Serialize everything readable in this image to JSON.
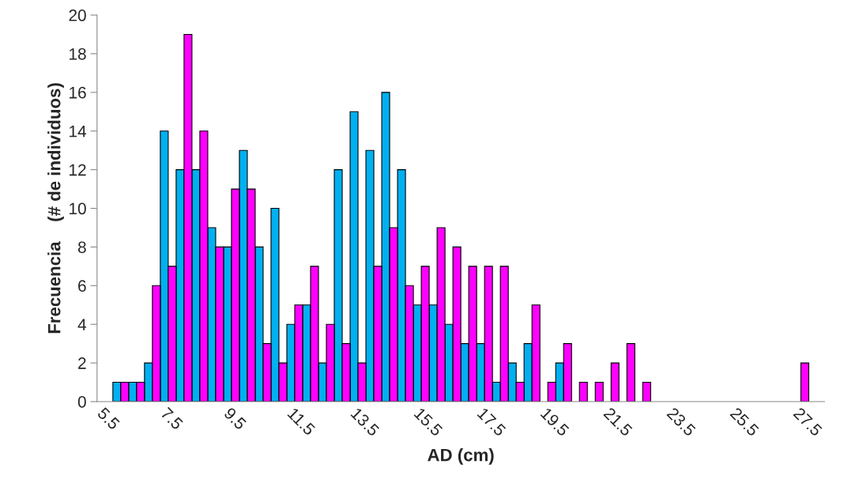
{
  "chart_data": {
    "type": "bar",
    "xlabel": "AD (cm)",
    "ylabel": "Frecuencia    (# de individuos)",
    "categories": [
      "5.5",
      null,
      null,
      null,
      "7.5",
      null,
      null,
      null,
      "9.5",
      null,
      null,
      null,
      "11.5",
      null,
      null,
      null,
      "13.5",
      null,
      null,
      null,
      "15.5",
      null,
      null,
      null,
      "17.5",
      null,
      null,
      null,
      "19.5",
      null,
      null,
      null,
      "21.5",
      null,
      null,
      null,
      "23.5",
      null,
      null,
      null,
      "25.5",
      null,
      null,
      null,
      "27.5",
      null
    ],
    "series": [
      {
        "color": "#00b0f0",
        "values": [
          null,
          1,
          1,
          2,
          14,
          12,
          12,
          9,
          8,
          13,
          8,
          10,
          4,
          5,
          2,
          12,
          15,
          13,
          16,
          12,
          5,
          5,
          4,
          3,
          3,
          1,
          2,
          3,
          null,
          2,
          null,
          null,
          null,
          null,
          null,
          null,
          null,
          null,
          null,
          null,
          null,
          null,
          null,
          null,
          null,
          null
        ]
      },
      {
        "color": "#ff00ff",
        "values": [
          null,
          1,
          1,
          6,
          7,
          19,
          14,
          8,
          11,
          11,
          3,
          2,
          5,
          7,
          4,
          3,
          2,
          7,
          9,
          6,
          7,
          9,
          8,
          7,
          7,
          7,
          1,
          5,
          1,
          3,
          1,
          1,
          2,
          3,
          1,
          null,
          null,
          null,
          null,
          null,
          null,
          null,
          null,
          null,
          2,
          null
        ]
      }
    ],
    "ylim": [
      0,
      20
    ],
    "yticks": [
      0,
      2,
      4,
      6,
      8,
      10,
      12,
      14,
      16,
      18,
      20
    ],
    "grid": false,
    "legend": false
  }
}
